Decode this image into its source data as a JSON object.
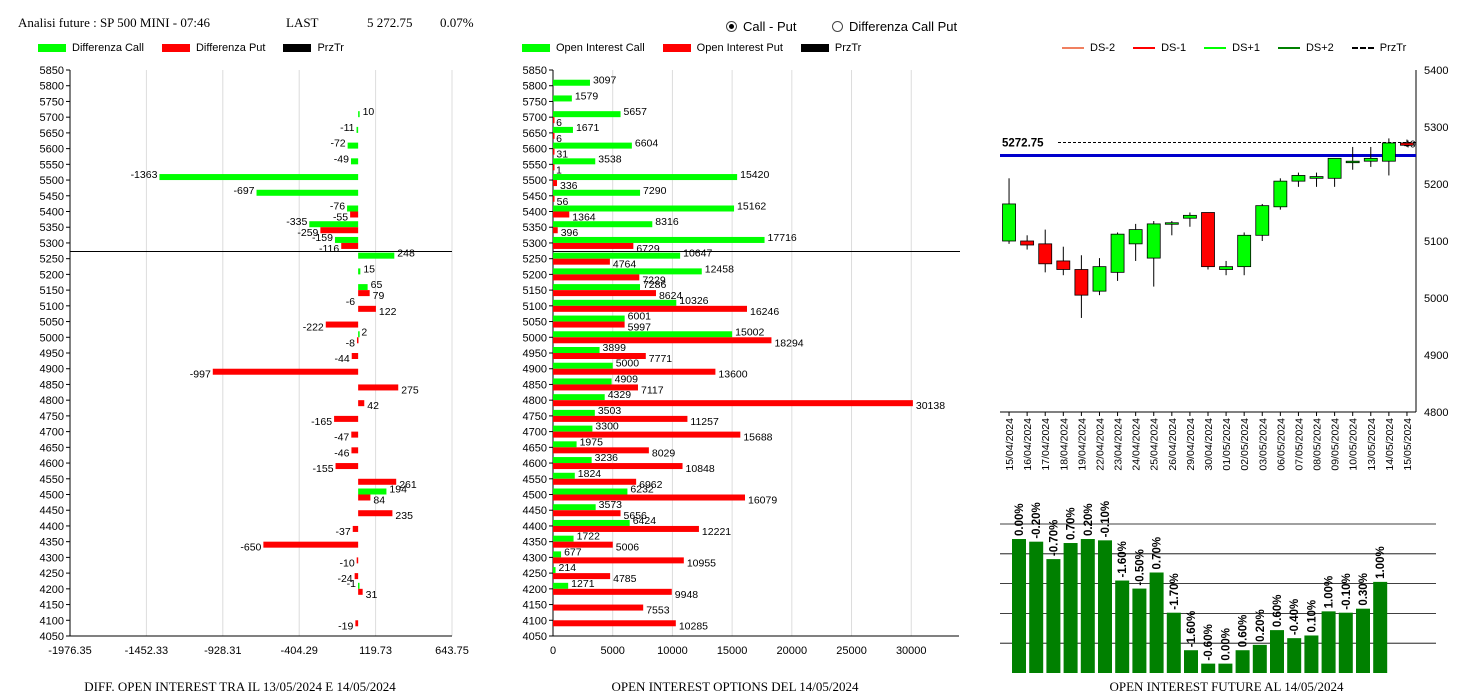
{
  "header": {
    "title": "Analisi future : SP 500 MINI - 07:46",
    "last_label": "LAST",
    "last_value": "5 272.75",
    "change": "0.07%"
  },
  "radio": {
    "option1": "Call - Put",
    "option2": "Differenza Call Put",
    "selected": "Call - Put"
  },
  "colors": {
    "call": "#00ff00",
    "put": "#ff0000",
    "przTr": "#000000",
    "future_bar": "#008000",
    "price_line": "#0000cc"
  },
  "legend1": [
    "Differenza Call",
    "Differenza Put",
    "PrzTr"
  ],
  "legend2": [
    "Open Interest Call",
    "Open Interest Put",
    "PrzTr"
  ],
  "legend3": [
    "DS-2",
    "DS-1",
    "DS+1",
    "DS+2",
    "PrzTr"
  ],
  "captions": {
    "chart1": "DIFF. OPEN INTEREST TRA IL 13/05/2024 E 14/05/2024",
    "chart2": "OPEN INTEREST OPTIONS DEL 14/05/2024",
    "chart3": "OPEN INTEREST FUTURE AL 14/05/2024"
  },
  "chart_data": [
    {
      "type": "bar",
      "orientation": "horizontal",
      "strikes": [
        "5850",
        "5800",
        "5750",
        "5700",
        "5650",
        "5600",
        "5550",
        "5500",
        "5450",
        "5400",
        "5350",
        "5300",
        "5250",
        "5200",
        "5150",
        "5100",
        "5050",
        "5000",
        "4950",
        "4900",
        "4850",
        "4800",
        "4750",
        "4700",
        "4650",
        "4600",
        "4550",
        "4500",
        "4450",
        "4400",
        "4350",
        "4300",
        "4250",
        "4200",
        "4150",
        "4100",
        "4050"
      ],
      "x_ticks": [
        "-1976.35",
        "-1452.33",
        "-928.31",
        "-404.29",
        "119.73",
        "643.75"
      ],
      "xlim": [
        -1976.35,
        643.75
      ],
      "przTr": 5272.75,
      "series": [
        {
          "name": "Differenza Call",
          "values": [
            null,
            null,
            null,
            10,
            -11,
            -72,
            -49,
            -1363,
            -697,
            -76,
            -335,
            -159,
            248,
            15,
            65,
            null,
            null,
            2,
            null,
            null,
            null,
            null,
            null,
            null,
            null,
            null,
            null,
            194,
            null,
            null,
            null,
            null,
            null,
            -1,
            null,
            null,
            null
          ]
        },
        {
          "name": "Differenza Put",
          "values": [
            null,
            null,
            null,
            null,
            null,
            null,
            null,
            null,
            null,
            -55,
            -259,
            -116,
            null,
            null,
            79,
            122,
            -222,
            -8,
            -44,
            -997,
            275,
            42,
            -165,
            -47,
            -46,
            -155,
            261,
            84,
            235,
            -37,
            -650,
            -10,
            -24,
            31,
            null,
            -19,
            null
          ]
        }
      ],
      "extra_labels": [
        {
          "strike": "5100",
          "text": "-6"
        }
      ]
    },
    {
      "type": "bar",
      "orientation": "horizontal",
      "strikes": [
        "5850",
        "5800",
        "5750",
        "5700",
        "5650",
        "5600",
        "5550",
        "5500",
        "5450",
        "5400",
        "5350",
        "5300",
        "5250",
        "5200",
        "5150",
        "5100",
        "5050",
        "5000",
        "4950",
        "4900",
        "4850",
        "4800",
        "4750",
        "4700",
        "4650",
        "4600",
        "4550",
        "4500",
        "4450",
        "4400",
        "4350",
        "4300",
        "4250",
        "4200",
        "4150",
        "4100",
        "4050"
      ],
      "x_ticks": [
        "0",
        "5000",
        "10000",
        "15000",
        "20000",
        "25000",
        "30000"
      ],
      "xlim": [
        0,
        34000
      ],
      "przTr": 5272.75,
      "series": [
        {
          "name": "Open Interest Call",
          "values": [
            null,
            3097,
            1579,
            5657,
            1671,
            6604,
            3538,
            15420,
            7290,
            15162,
            8316,
            17716,
            10647,
            12458,
            7286,
            10326,
            6001,
            15002,
            3899,
            5000,
            4909,
            4329,
            3503,
            3300,
            1975,
            3236,
            1824,
            6232,
            3573,
            6424,
            1722,
            677,
            214,
            1271,
            null,
            null,
            null
          ]
        },
        {
          "name": "Open Interest Put",
          "values": [
            null,
            null,
            null,
            6,
            6,
            31,
            1,
            336,
            56,
            1364,
            396,
            6729,
            4764,
            7229,
            8624,
            16246,
            5997,
            18294,
            7771,
            13600,
            7117,
            30138,
            11257,
            15688,
            8029,
            10848,
            6962,
            16079,
            5656,
            12221,
            5006,
            10955,
            4785,
            9948,
            7553,
            10285,
            null
          ]
        }
      ]
    },
    {
      "type": "candlestick",
      "dates": [
        "15/04/2024",
        "16/04/2024",
        "17/04/2024",
        "18/04/2024",
        "19/04/2024",
        "22/04/2024",
        "23/04/2024",
        "24/04/2024",
        "25/04/2024",
        "26/04/2024",
        "29/04/2024",
        "30/04/2024",
        "01/05/2024",
        "02/05/2024",
        "03/05/2024",
        "06/05/2024",
        "07/05/2024",
        "08/05/2024",
        "09/05/2024",
        "10/05/2024",
        "13/05/2024",
        "14/05/2024",
        "15/05/2024"
      ],
      "y_ticks": [
        "5400",
        "5300",
        "5200",
        "5100",
        "5000",
        "4900",
        "4800"
      ],
      "ylim": [
        4800,
        5400
      ],
      "last_label": "5272.75",
      "last_value": 5272.75,
      "blue_line": 5250,
      "right_label": "40",
      "ohlc": [
        [
          5100,
          5210,
          5095,
          5165
        ],
        [
          5100,
          5110,
          5085,
          5093
        ],
        [
          5095,
          5120,
          5045,
          5060
        ],
        [
          5065,
          5090,
          5040,
          5050
        ],
        [
          5050,
          5075,
          4965,
          5005
        ],
        [
          5012,
          5070,
          5005,
          5055
        ],
        [
          5045,
          5115,
          5030,
          5112
        ],
        [
          5095,
          5130,
          5065,
          5120
        ],
        [
          5070,
          5135,
          5020,
          5130
        ],
        [
          5130,
          5135,
          5110,
          5132
        ],
        [
          5140,
          5150,
          5125,
          5145
        ],
        [
          5150,
          5150,
          5050,
          5055
        ],
        [
          5050,
          5065,
          5040,
          5055
        ],
        [
          5055,
          5115,
          5040,
          5110
        ],
        [
          5110,
          5165,
          5100,
          5162
        ],
        [
          5160,
          5210,
          5155,
          5205
        ],
        [
          5205,
          5220,
          5195,
          5215
        ],
        [
          5210,
          5220,
          5195,
          5213
        ],
        [
          5210,
          5245,
          5195,
          5245
        ],
        [
          5240,
          5265,
          5225,
          5240
        ],
        [
          5240,
          5265,
          5230,
          5245
        ],
        [
          5240,
          5280,
          5215,
          5272
        ],
        [
          5272,
          5278,
          5265,
          5268
        ]
      ]
    },
    {
      "type": "bar",
      "categories": [
        "15/04/2024",
        "16/04/2024",
        "17/04/2024",
        "18/04/2024",
        "19/04/2024",
        "22/04/2024",
        "23/04/2024",
        "24/04/2024",
        "25/04/2024",
        "26/04/2024",
        "29/04/2024",
        "30/04/2024",
        "01/05/2024",
        "02/05/2024",
        "03/05/2024",
        "06/05/2024",
        "07/05/2024",
        "08/05/2024",
        "09/05/2024",
        "10/05/2024",
        "13/05/2024",
        "14/05/2024"
      ],
      "labels": [
        "0.00%",
        "-0.20%",
        "-0.70%",
        "0.70%",
        "0.20%",
        "-0.10%",
        "-1.60%",
        "-0.50%",
        "0.70%",
        "-1.70%",
        "-1.60%",
        "-0.60%",
        "0.00%",
        "0.60%",
        "0.20%",
        "0.60%",
        "-0.40%",
        "0.10%",
        "1.00%",
        "-0.10%",
        "0.30%",
        "1.00%"
      ],
      "values": [
        100,
        98,
        85,
        97,
        100,
        99,
        69,
        63,
        75,
        45,
        17,
        7,
        7,
        17,
        21,
        32,
        26,
        28,
        46,
        45,
        48,
        68
      ]
    }
  ]
}
